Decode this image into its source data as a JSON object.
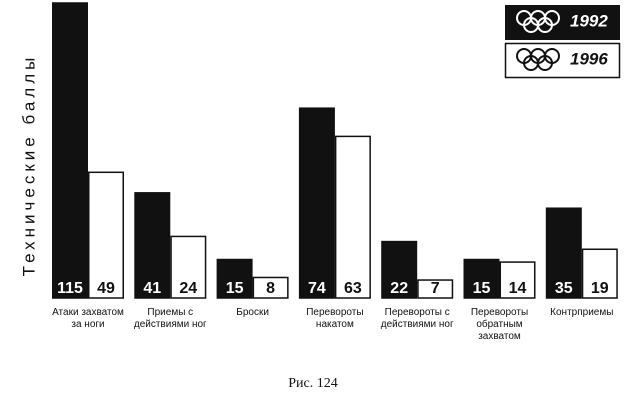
{
  "chart_data": {
    "type": "bar",
    "y_label": "Технические баллы",
    "categories": [
      "Атаки захватом за ноги",
      "Приемы с действиями ног",
      "Броски",
      "Перевороты накатом",
      "Перевороты с действиями ног",
      "Перевороты обратным захватом",
      "Контрприемы"
    ],
    "series": [
      {
        "name": "1992",
        "color": "#111111",
        "values": [
          115,
          41,
          15,
          74,
          22,
          15,
          35
        ]
      },
      {
        "name": "1996",
        "color": "#ffffff",
        "values": [
          49,
          24,
          8,
          63,
          7,
          14,
          19
        ]
      }
    ],
    "caption": "Рис. 124"
  }
}
